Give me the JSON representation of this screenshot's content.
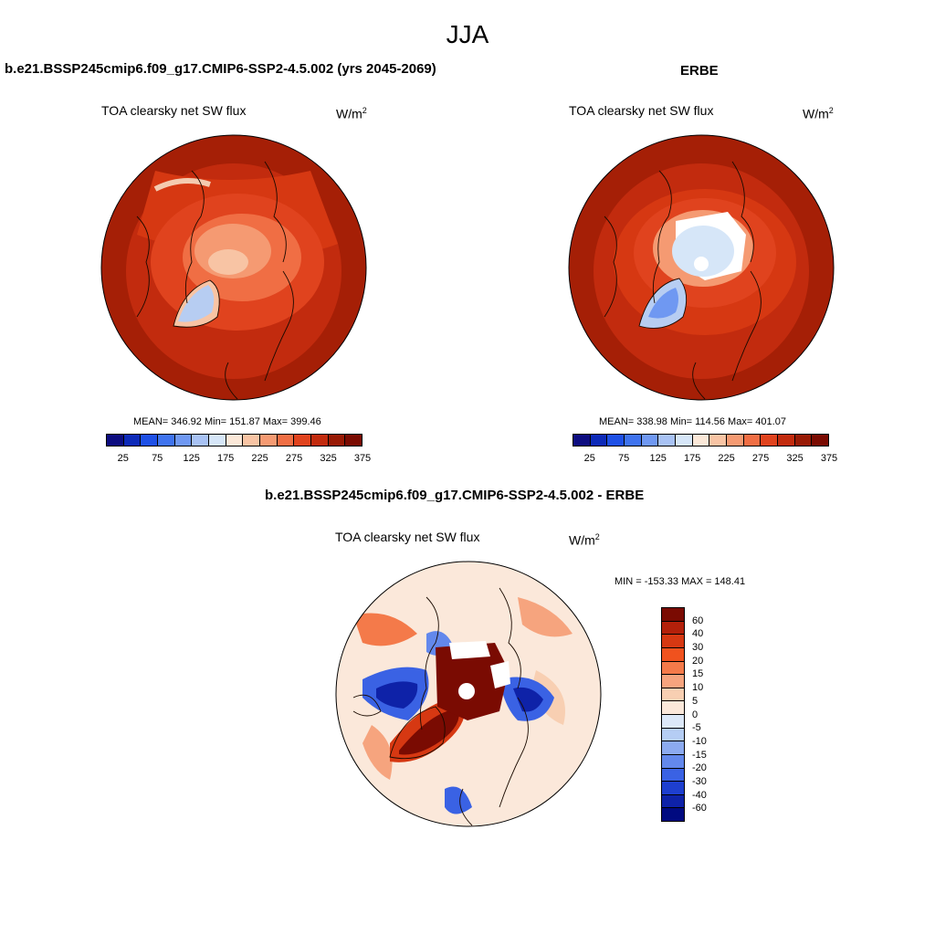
{
  "season": "JJA",
  "units": {
    "base": "W/m",
    "exp": "2"
  },
  "variable": "TOA clearsky net SW flux",
  "panels": {
    "model": {
      "title": "b.e21.BSSP245cmip6.f09_g17.CMIP6-SSP2-4.5.002 (yrs 2045-2069)",
      "stats": "MEAN= 346.92  Min= 151.87  Max= 399.46",
      "mean": 346.92,
      "min": 151.87,
      "max": 399.46
    },
    "obs": {
      "title": "ERBE",
      "stats": "MEAN= 338.98  Min= 114.56  Max= 401.07",
      "mean": 338.98,
      "min": 114.56,
      "max": 401.07
    },
    "diff": {
      "title": "b.e21.BSSP245cmip6.f09_g17.CMIP6-SSP2-4.5.002 - ERBE",
      "stats": "MIN = -153.33 MAX = 148.41",
      "min": -153.33,
      "max": 148.41
    }
  },
  "abs_colorbar": {
    "colors": [
      "#0d0d80",
      "#0d2ab8",
      "#1e50e6",
      "#3f73ee",
      "#6f98f2",
      "#a8c2f4",
      "#d6e6f8",
      "#fbe8d8",
      "#f8c4a4",
      "#f59a72",
      "#f06e44",
      "#e0431e",
      "#c22b0e",
      "#981a05",
      "#7a0b02"
    ],
    "labels": [
      "25",
      "75",
      "125",
      "175",
      "225",
      "275",
      "325",
      "375"
    ]
  },
  "diff_colorbar": {
    "colors": [
      "#7a0b02",
      "#b3200a",
      "#d63812",
      "#f0521e",
      "#f47a4a",
      "#f6a47e",
      "#f8cfb2",
      "#fbe8da",
      "#dce8f8",
      "#b5cdf4",
      "#8caaf0",
      "#6388ec",
      "#3a62e4",
      "#1e3fcf",
      "#0e22a8",
      "#000a80"
    ],
    "labels": [
      "60",
      "40",
      "30",
      "20",
      "15",
      "10",
      "5",
      "0",
      "-5",
      "-10",
      "-15",
      "-20",
      "-30",
      "-40",
      "-60"
    ]
  },
  "chart_data": [
    {
      "type": "heatmap",
      "projection": "north-polar-stereographic",
      "title": "b.e21.BSSP245cmip6.f09_g17.CMIP6-SSP2-4.5.002 (yrs 2045-2069)",
      "variable": "TOA clearsky net SW flux",
      "units": "W/m2",
      "levels": [
        25,
        50,
        75,
        100,
        125,
        150,
        175,
        200,
        225,
        250,
        275,
        300,
        325,
        350,
        375
      ],
      "mean": 346.92,
      "min": 151.87,
      "max": 399.46
    },
    {
      "type": "heatmap",
      "projection": "north-polar-stereographic",
      "title": "ERBE",
      "variable": "TOA clearsky net SW flux",
      "units": "W/m2",
      "levels": [
        25,
        50,
        75,
        100,
        125,
        150,
        175,
        200,
        225,
        250,
        275,
        300,
        325,
        350,
        375
      ],
      "mean": 338.98,
      "min": 114.56,
      "max": 401.07
    },
    {
      "type": "heatmap",
      "projection": "north-polar-stereographic",
      "title": "b.e21.BSSP245cmip6.f09_g17.CMIP6-SSP2-4.5.002 - ERBE",
      "variable": "TOA clearsky net SW flux",
      "units": "W/m2",
      "levels": [
        -60,
        -40,
        -30,
        -20,
        -15,
        -10,
        -5,
        0,
        5,
        10,
        15,
        20,
        30,
        40,
        60
      ],
      "min": -153.33,
      "max": 148.41
    }
  ]
}
